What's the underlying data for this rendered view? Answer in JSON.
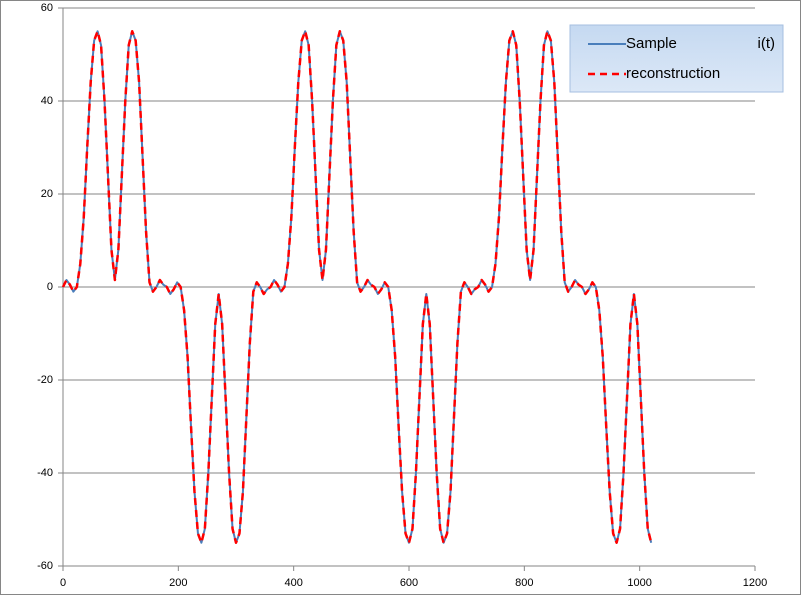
{
  "chart_data": {
    "type": "line",
    "legend_title": "i(t)",
    "x": [
      0,
      6,
      12,
      18,
      24,
      30,
      36,
      42,
      48,
      54,
      60,
      66,
      72,
      78,
      84,
      90,
      96,
      102,
      108,
      114,
      120,
      126,
      132,
      138,
      144,
      150,
      156,
      162,
      168,
      174,
      180,
      186,
      192,
      198,
      204,
      210,
      216,
      222,
      228,
      234,
      240,
      246,
      252,
      258,
      264,
      270,
      276,
      282,
      288,
      294,
      300,
      306,
      312,
      318,
      324,
      330,
      336,
      342,
      348,
      354,
      360,
      366,
      372,
      378,
      384,
      390,
      396,
      402,
      408,
      414,
      420,
      426,
      432,
      438,
      444,
      450,
      456,
      462,
      468,
      474,
      480,
      486,
      492,
      498,
      504,
      510,
      516,
      522,
      528,
      534,
      540,
      546,
      552,
      558,
      564,
      570,
      576,
      582,
      588,
      594,
      600,
      606,
      612,
      618,
      624,
      630,
      636,
      642,
      648,
      654,
      660,
      666,
      672,
      678,
      684,
      690,
      696,
      702,
      708,
      714,
      720,
      726,
      732,
      738,
      744,
      750,
      756,
      762,
      768,
      774,
      780,
      786,
      792,
      798,
      804,
      810,
      816,
      822,
      828,
      834,
      840,
      846,
      852,
      858,
      864,
      870,
      876,
      882,
      888,
      894,
      900,
      906,
      912,
      918,
      924,
      930,
      936,
      942,
      948,
      954,
      960,
      966,
      972,
      978,
      984,
      990,
      996,
      1002,
      1008,
      1014,
      1020
    ],
    "series": [
      {
        "name": "Sample",
        "color": "#4a7ebb",
        "dashed": false,
        "values": [
          0,
          1.5,
          0.5,
          -1,
          0,
          5,
          15,
          30,
          44,
          53,
          55,
          52,
          40,
          24,
          8,
          1.5,
          8,
          24,
          40,
          52,
          55,
          53,
          44,
          28,
          12,
          1,
          -1,
          0,
          1.5,
          0.5,
          0,
          -1.5,
          -0.5,
          1,
          0,
          -5,
          -15,
          -30,
          -44,
          -53,
          -55,
          -52,
          -40,
          -24,
          -8,
          -1.5,
          -8,
          -24,
          -40,
          -52,
          -55,
          -53,
          -44,
          -28,
          -12,
          -1,
          1,
          0,
          -1.5,
          -0.5,
          0,
          1.5,
          0.5,
          -1,
          0,
          5,
          15,
          30,
          44,
          53,
          55,
          52,
          40,
          24,
          8,
          1.5,
          8,
          24,
          40,
          52,
          55,
          53,
          44,
          28,
          12,
          1,
          -1,
          0,
          1.5,
          0.5,
          0,
          -1.5,
          -0.5,
          1,
          0,
          -5,
          -15,
          -30,
          -44,
          -53,
          -55,
          -52,
          -40,
          -24,
          -8,
          -1.5,
          -8,
          -24,
          -40,
          -52,
          -55,
          -53,
          -44,
          -28,
          -12,
          -1,
          1,
          0,
          -1.5,
          -0.5,
          0,
          1.5,
          0.5,
          -1,
          0,
          5,
          15,
          30,
          44,
          53,
          55,
          52,
          40,
          24,
          8,
          1.5,
          8,
          24,
          40,
          52,
          55,
          53,
          44,
          28,
          12,
          1,
          -1,
          0,
          1.5,
          0.5,
          0,
          -1.5,
          -0.5,
          1,
          0,
          -5,
          -15,
          -30,
          -44,
          -53,
          -55,
          -52,
          -40,
          -24,
          -8,
          -1.5,
          -8,
          -24,
          -40,
          -52,
          -55
        ]
      },
      {
        "name": "reconstruction",
        "color": "#ff0000",
        "dashed": true,
        "values": [
          0,
          1.5,
          0.5,
          -1,
          0,
          5,
          15,
          30,
          44,
          53,
          55,
          52,
          40,
          24,
          8,
          1.5,
          8,
          24,
          40,
          52,
          55,
          53,
          44,
          28,
          12,
          1,
          -1,
          0,
          1.5,
          0.5,
          0,
          -1.5,
          -0.5,
          1,
          0,
          -5,
          -15,
          -30,
          -44,
          -53,
          -55,
          -52,
          -40,
          -24,
          -8,
          -1.5,
          -8,
          -24,
          -40,
          -52,
          -55,
          -53,
          -44,
          -28,
          -12,
          -1,
          1,
          0,
          -1.5,
          -0.5,
          0,
          1.5,
          0.5,
          -1,
          0,
          5,
          15,
          30,
          44,
          53,
          55,
          52,
          40,
          24,
          8,
          1.5,
          8,
          24,
          40,
          52,
          55,
          53,
          44,
          28,
          12,
          1,
          -1,
          0,
          1.5,
          0.5,
          0,
          -1.5,
          -0.5,
          1,
          0,
          -5,
          -15,
          -30,
          -44,
          -53,
          -55,
          -52,
          -40,
          -24,
          -8,
          -1.5,
          -8,
          -24,
          -40,
          -52,
          -55,
          -53,
          -44,
          -28,
          -12,
          -1,
          1,
          0,
          -1.5,
          -0.5,
          0,
          1.5,
          0.5,
          -1,
          0,
          5,
          15,
          30,
          44,
          53,
          55,
          52,
          40,
          24,
          8,
          1.5,
          8,
          24,
          40,
          52,
          55,
          53,
          44,
          28,
          12,
          1,
          -1,
          0,
          1.5,
          0.5,
          0,
          -1.5,
          -0.5,
          1,
          0,
          -5,
          -15,
          -30,
          -44,
          -53,
          -55,
          -52,
          -40,
          -24,
          -8,
          -1.5,
          -8,
          -24,
          -40,
          -52,
          -55
        ]
      }
    ],
    "xlim": [
      0,
      1200
    ],
    "xticks": [
      0,
      200,
      400,
      600,
      800,
      1000,
      1200
    ],
    "ylim": [
      -60,
      60
    ],
    "yticks": [
      -60,
      -40,
      -20,
      0,
      20,
      40,
      60
    ],
    "grid": true,
    "legend": "upper right"
  }
}
